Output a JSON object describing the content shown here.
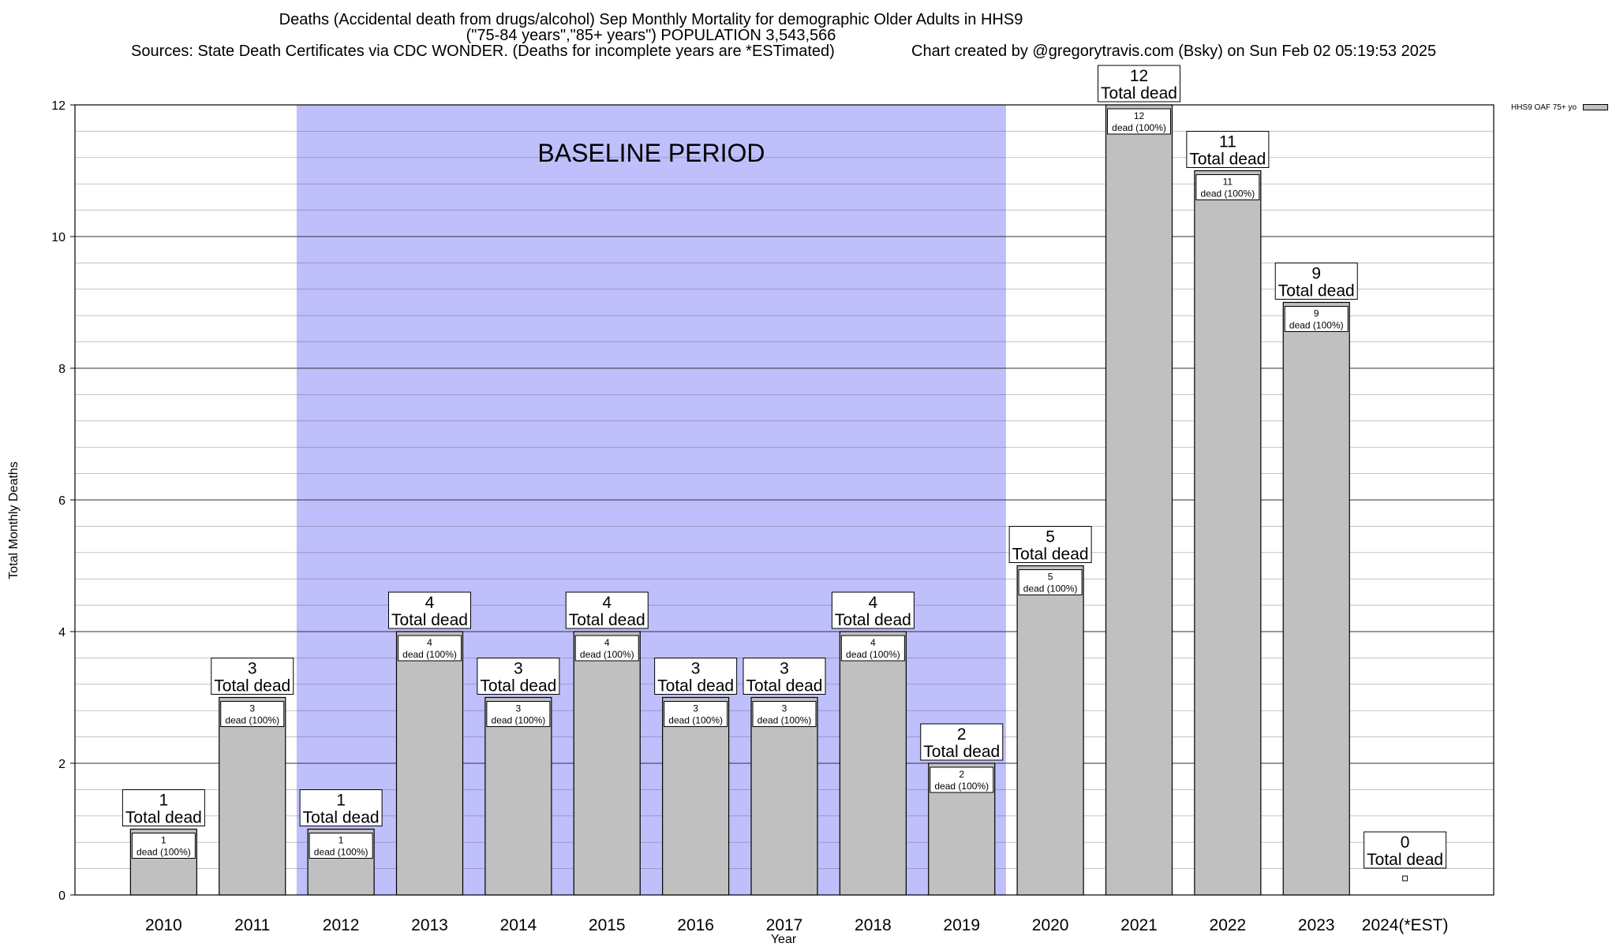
{
  "header": {
    "title_line1": "Deaths (Accidental death from drugs/alcohol) Sep Monthly Mortality for demographic Older Adults in HHS9",
    "title_line2": "(\"75-84 years\",\"85+ years\") POPULATION 3,543,566",
    "sources": "Sources: State Death Certificates via CDC WONDER. (Deaths for incomplete years are *ESTimated)",
    "credit": "Chart created by @gregorytravis.com (Bsky) on Sun Feb 02 05:19:53 2025"
  },
  "chart_data": {
    "type": "bar",
    "xlabel": "Year",
    "ylabel": "Total Monthly Deaths",
    "ylim": [
      0,
      12
    ],
    "yticks": [
      0,
      2,
      4,
      6,
      8,
      10,
      12
    ],
    "grid": true,
    "categories": [
      "2010",
      "2011",
      "2012",
      "2013",
      "2014",
      "2015",
      "2016",
      "2017",
      "2018",
      "2019",
      "2020",
      "2021",
      "2022",
      "2023",
      "2024(*EST)"
    ],
    "series": [
      {
        "name": "HHS9 OAF 75+ yo",
        "values": [
          1,
          3,
          1,
          4,
          3,
          4,
          3,
          3,
          4,
          2,
          5,
          12,
          11,
          9,
          0
        ],
        "color": "#c0c0c0"
      }
    ],
    "total_label": "Total dead",
    "inner_label": "dead (100%)",
    "baseline": {
      "label": "BASELINE PERIOD",
      "from": "2012",
      "to": "2019",
      "color": "#bfbffc"
    },
    "legend_position": "top-right"
  }
}
